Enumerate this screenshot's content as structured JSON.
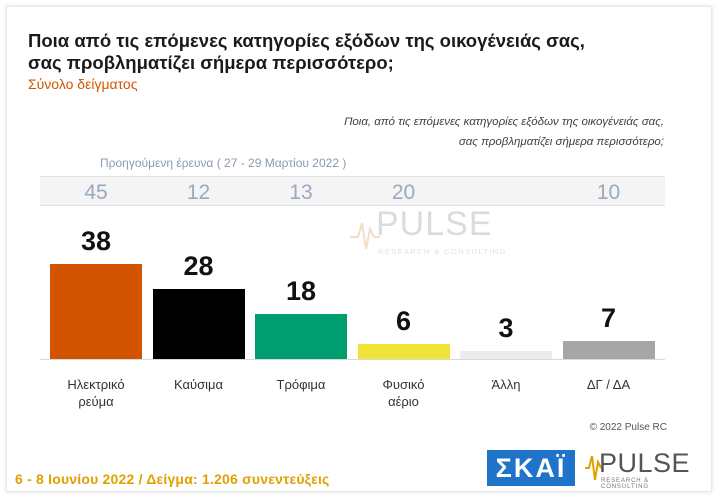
{
  "header": {
    "title": "Ποια από τις επόμενες κατηγορίες εξόδων της οικογένειάς σας, σας προβληματίζει σήμερα περισσότερο;",
    "subtitle": "Σύνολο δείγματος",
    "question_line1": "Ποια, από τις επόμενες κατηγορίες εξόδων της οικογένειάς σας,",
    "question_line2": "σας προβληματίζει σήμερα περισσότερο;"
  },
  "previous": {
    "label": "Προηγούμενη έρευνα  ( 27 - 29 Μαρτίου  2022 )"
  },
  "chart_data": {
    "type": "bar",
    "categories": [
      "Ηλεκτρικό ρεύμα",
      "Καύσιμα",
      "Τρόφιμα",
      "Φυσικό αέριο",
      "Άλλη",
      "ΔΓ / ΔΑ"
    ],
    "category_lines": [
      [
        "Ηλεκτρικό",
        "ρεύμα"
      ],
      [
        "Καύσιμα"
      ],
      [
        "Τρόφιμα"
      ],
      [
        "Φυσικό",
        "αέριο"
      ],
      [
        "Άλλη"
      ],
      [
        "ΔΓ / ΔΑ"
      ]
    ],
    "values": [
      38,
      28,
      18,
      6,
      3,
      7
    ],
    "previous_values": [
      45,
      12,
      13,
      20,
      null,
      10
    ],
    "colors": [
      "#d35400",
      "#000000",
      "#009e6e",
      "#f0e33a",
      "#ececec",
      "#a6a6a6"
    ],
    "ylim": [
      0,
      45
    ],
    "grid": false,
    "legend": "none"
  },
  "watermark": {
    "word": "PULSE",
    "sub": "RESEARCH & CONSULTING"
  },
  "copyright": "© 2022 Pulse RC",
  "footer": {
    "text": "6 - 8  Ιουνίου  2022  /  Δείγμα:  1.206 συνεντεύξεις"
  },
  "logos": {
    "skai": "ΣΚΑΪ",
    "pulse_word": "PULSE",
    "pulse_sub": "RESEARCH & CONSULTING",
    "skai_color": "#1f73c9"
  }
}
